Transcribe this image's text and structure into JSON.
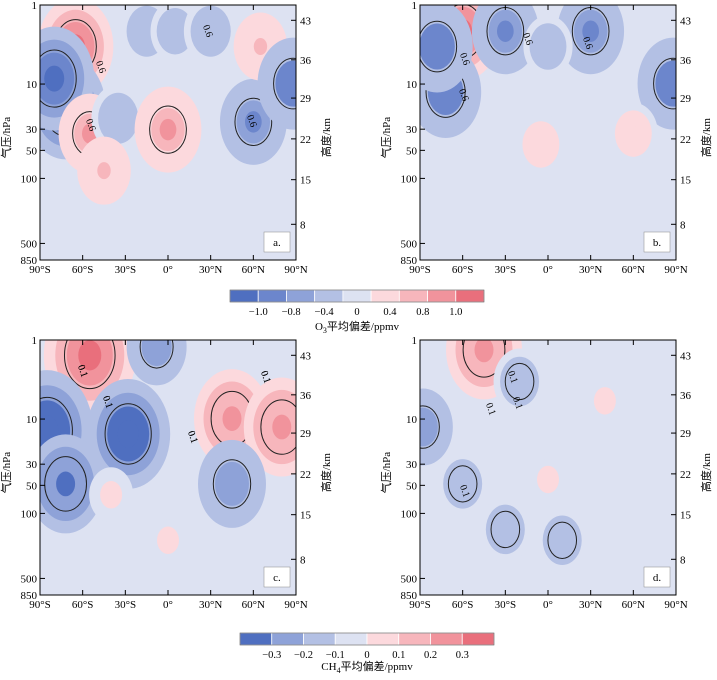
{
  "figure": {
    "panels": [
      {
        "id": "a",
        "tag": "a.",
        "contours": [
          {
            "label": "0.6",
            "shape": "neg"
          },
          {
            "label": "0.6",
            "shape": "pos"
          },
          {
            "label": "0.6",
            "shape": "neg"
          },
          {
            "label": "0.6",
            "shape": "pos"
          }
        ]
      },
      {
        "id": "b",
        "tag": "b.",
        "contours": [
          {
            "label": "0.6",
            "shape": "neg"
          },
          {
            "label": "0.6",
            "shape": "pos"
          },
          {
            "label": "0.6",
            "shape": "neg"
          },
          {
            "label": "0.6",
            "shape": "neg"
          }
        ]
      },
      {
        "id": "c",
        "tag": "c.",
        "contours": [
          {
            "label": "0.1",
            "shape": "pos"
          },
          {
            "label": "0.1",
            "shape": "neg"
          },
          {
            "label": "0.1",
            "shape": "neg"
          },
          {
            "label": "0.1",
            "shape": "pos"
          },
          {
            "label": "0.1",
            "shape": "pos"
          },
          {
            "label": "0.1",
            "shape": "neg"
          },
          {
            "label": "0.1",
            "shape": "neg"
          },
          {
            "label": "0.1",
            "shape": "pos"
          }
        ]
      },
      {
        "id": "d",
        "tag": "d.",
        "contours": [
          {
            "label": "0.1",
            "shape": "pos"
          },
          {
            "label": "0.1",
            "shape": "pos"
          },
          {
            "label": "0.1",
            "shape": "pos"
          },
          {
            "label": "0.1",
            "shape": "neg"
          }
        ]
      }
    ],
    "colorbars": [
      {
        "id": "o3",
        "title_main": "O",
        "title_sub": "3",
        "title_rest": "平均偏差/ppmv",
        "ticks": [
          "−1.0",
          "−0.8",
          "−0.4",
          "0",
          "0.4",
          "0.8",
          "1.0"
        ],
        "colors": [
          "#4f6fc0",
          "#6c86cc",
          "#8ea2d8",
          "#b3c0e4",
          "#dde2f2",
          "#fcd9dd",
          "#f7b6bc",
          "#f1939c",
          "#e96f7c"
        ]
      },
      {
        "id": "ch4",
        "title_main": "CH",
        "title_sub": "4",
        "title_rest": "平均偏差/ppmv",
        "ticks": [
          "−0.3",
          "−0.2",
          "−0.1",
          "0",
          "0.1",
          "0.2",
          "0.3"
        ],
        "colors": [
          "#4f6fc0",
          "#8ea2d8",
          "#b3c0e4",
          "#dde2f2",
          "#fcd9dd",
          "#f7b6bc",
          "#f1939c",
          "#e96f7c"
        ]
      }
    ]
  },
  "chart_data": [
    {
      "type": "heatmap",
      "panel": "a",
      "variable": "O3",
      "x": [
        "90°S",
        "60°S",
        "30°S",
        "0°",
        "30°N",
        "60°N",
        "90°N"
      ],
      "y_pressure": [
        "1",
        "10",
        "30",
        "50",
        "100",
        "500",
        "850"
      ],
      "y_pressure_label": "气压/hPa",
      "y_height": [
        "43",
        "36",
        "29",
        "22",
        "15",
        "8"
      ],
      "y_height_label": "高度/km",
      "contour_level": 0.6,
      "features": [
        {
          "lat": -65,
          "p": 3,
          "value": 0.9
        },
        {
          "lat": -72,
          "p": 15,
          "value": -1.0
        },
        {
          "lat": -80,
          "p": 7,
          "value": -1.0
        },
        {
          "lat": -55,
          "p": 30,
          "value": 0.6
        },
        {
          "lat": -35,
          "p": 20,
          "value": -0.4
        },
        {
          "lat": -15,
          "p": 2,
          "value": -0.4
        },
        {
          "lat": 5,
          "p": 2,
          "value": -0.3
        },
        {
          "lat": 30,
          "p": 2,
          "value": -0.4
        },
        {
          "lat": 0,
          "p": 27,
          "value": 0.7
        },
        {
          "lat": 60,
          "p": 22,
          "value": -0.7
        },
        {
          "lat": 65,
          "p": 3,
          "value": 0.4
        },
        {
          "lat": 88,
          "p": 8,
          "value": -0.8
        },
        {
          "lat": -45,
          "p": 80,
          "value": 0.4
        }
      ]
    },
    {
      "type": "heatmap",
      "panel": "b",
      "variable": "O3",
      "x": [
        "90°S",
        "60°S",
        "30°S",
        "0°",
        "30°N",
        "60°N",
        "90°N"
      ],
      "y_pressure": [
        "1",
        "10",
        "30",
        "50",
        "100",
        "500",
        "850"
      ],
      "y_pressure_label": "气压/hPa",
      "y_height": [
        "43",
        "36",
        "29",
        "22",
        "15",
        "8"
      ],
      "y_height_label": "高度/km",
      "contour_level": 0.6,
      "features": [
        {
          "lat": -60,
          "p": 2,
          "value": 0.9
        },
        {
          "lat": -72,
          "p": 10,
          "value": -0.8
        },
        {
          "lat": -78,
          "p": 3,
          "value": -0.8
        },
        {
          "lat": -30,
          "p": 2,
          "value": -0.7
        },
        {
          "lat": 30,
          "p": 2,
          "value": -0.7
        },
        {
          "lat": 0,
          "p": 3,
          "value": -0.3
        },
        {
          "lat": 88,
          "p": 8,
          "value": -0.8
        },
        {
          "lat": -5,
          "p": 40,
          "value": 0.3
        },
        {
          "lat": 60,
          "p": 30,
          "value": 0.3
        }
      ]
    },
    {
      "type": "heatmap",
      "panel": "c",
      "variable": "CH4",
      "x": [
        "90°S",
        "60°S",
        "30°S",
        "0°",
        "30°N",
        "60°N",
        "90°N"
      ],
      "y_pressure": [
        "1",
        "10",
        "30",
        "50",
        "100",
        "500",
        "850"
      ],
      "y_pressure_label": "气压/hPa",
      "y_height": [
        "43",
        "36",
        "29",
        "22",
        "15",
        "8"
      ],
      "y_height_label": "高度/km",
      "contour_level": 0.1,
      "features": [
        {
          "lat": -55,
          "p": 1.5,
          "value": 0.35
        },
        {
          "lat": -85,
          "p": 11,
          "value": -0.35
        },
        {
          "lat": -72,
          "p": 45,
          "value": -0.25
        },
        {
          "lat": -28,
          "p": 12,
          "value": -0.3
        },
        {
          "lat": -8,
          "p": 1.2,
          "value": -0.15
        },
        {
          "lat": 45,
          "p": 8,
          "value": 0.25
        },
        {
          "lat": 80,
          "p": 10,
          "value": 0.25
        },
        {
          "lat": 45,
          "p": 45,
          "value": -0.2
        },
        {
          "lat": -40,
          "p": 60,
          "value": 0.05
        },
        {
          "lat": 0,
          "p": 200,
          "value": 0.05
        }
      ]
    },
    {
      "type": "heatmap",
      "panel": "d",
      "variable": "CH4",
      "x": [
        "90°S",
        "60°S",
        "30°S",
        "0°",
        "30°N",
        "60°N",
        "90°N"
      ],
      "y_pressure": [
        "1",
        "10",
        "30",
        "50",
        "100",
        "500",
        "850"
      ],
      "y_pressure_label": "气压/hPa",
      "y_height": [
        "43",
        "36",
        "29",
        "22",
        "15",
        "8"
      ],
      "y_height_label": "高度/km",
      "contour_level": 0.1,
      "features": [
        {
          "lat": -45,
          "p": 1.3,
          "value": 0.25
        },
        {
          "lat": -88,
          "p": 10,
          "value": -0.15
        },
        {
          "lat": -60,
          "p": 45,
          "value": -0.1
        },
        {
          "lat": -20,
          "p": 3,
          "value": -0.1
        },
        {
          "lat": 0,
          "p": 40,
          "value": 0.05
        },
        {
          "lat": 40,
          "p": 5,
          "value": 0.05
        },
        {
          "lat": -30,
          "p": 150,
          "value": -0.1
        },
        {
          "lat": 10,
          "p": 200,
          "value": -0.1
        }
      ]
    }
  ]
}
